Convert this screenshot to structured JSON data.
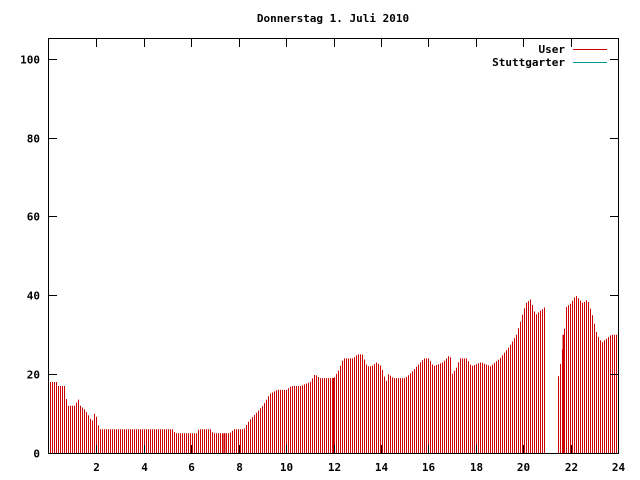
{
  "chart_data": {
    "type": "bar",
    "title": "Donnerstag 1. Juli 2010",
    "xlabel": "",
    "ylabel": "",
    "xlim": [
      0,
      24
    ],
    "ylim": [
      0,
      105
    ],
    "xticks": [
      2,
      4,
      6,
      8,
      10,
      12,
      14,
      16,
      18,
      20,
      22,
      24
    ],
    "yticks": [
      0,
      20,
      40,
      60,
      80,
      100
    ],
    "grid": false,
    "legend_position": "top-right",
    "series": [
      {
        "name": "User",
        "color": "#cc0000",
        "keypoints": [
          [
            0.0,
            18
          ],
          [
            0.3,
            18
          ],
          [
            0.35,
            17
          ],
          [
            0.65,
            17
          ],
          [
            0.7,
            14
          ],
          [
            0.8,
            12
          ],
          [
            1.1,
            12
          ],
          [
            1.2,
            14
          ],
          [
            1.3,
            12
          ],
          [
            1.5,
            11
          ],
          [
            1.7,
            9
          ],
          [
            1.8,
            8
          ],
          [
            1.9,
            10
          ],
          [
            2.0,
            9
          ],
          [
            2.1,
            6
          ],
          [
            5.2,
            6
          ],
          [
            5.3,
            5
          ],
          [
            6.2,
            5
          ],
          [
            6.3,
            6
          ],
          [
            6.8,
            6
          ],
          [
            6.9,
            5
          ],
          [
            7.6,
            5
          ],
          [
            7.8,
            6
          ],
          [
            8.2,
            6
          ],
          [
            8.4,
            8
          ],
          [
            8.7,
            10
          ],
          [
            9.0,
            12
          ],
          [
            9.3,
            15
          ],
          [
            9.6,
            16
          ],
          [
            10.0,
            16
          ],
          [
            10.2,
            17
          ],
          [
            10.6,
            17
          ],
          [
            11.0,
            18
          ],
          [
            11.2,
            20
          ],
          [
            11.4,
            19
          ],
          [
            12.0,
            19
          ],
          [
            12.2,
            21
          ],
          [
            12.4,
            24
          ],
          [
            12.8,
            24
          ],
          [
            13.0,
            25
          ],
          [
            13.2,
            25
          ],
          [
            13.4,
            22
          ],
          [
            13.6,
            22
          ],
          [
            13.8,
            23
          ],
          [
            14.0,
            22
          ],
          [
            14.2,
            18
          ],
          [
            14.3,
            20
          ],
          [
            14.5,
            19
          ],
          [
            15.0,
            19
          ],
          [
            15.2,
            20
          ],
          [
            15.5,
            22
          ],
          [
            15.8,
            24
          ],
          [
            16.0,
            24
          ],
          [
            16.2,
            22
          ],
          [
            16.6,
            23
          ],
          [
            16.9,
            25
          ],
          [
            17.0,
            20
          ],
          [
            17.2,
            22
          ],
          [
            17.3,
            24
          ],
          [
            17.6,
            24
          ],
          [
            17.8,
            22
          ],
          [
            18.2,
            23
          ],
          [
            18.6,
            22
          ],
          [
            19.0,
            24
          ],
          [
            19.4,
            27
          ],
          [
            19.7,
            30
          ],
          [
            19.95,
            35
          ],
          [
            20.1,
            38
          ],
          [
            20.3,
            39
          ],
          [
            20.5,
            35
          ],
          [
            20.7,
            36
          ],
          [
            20.9,
            37
          ],
          [
            21.0,
            null
          ],
          [
            21.35,
            null
          ],
          [
            21.4,
            16
          ],
          [
            21.5,
            21
          ],
          [
            21.6,
            24
          ],
          [
            21.7,
            30
          ],
          [
            21.8,
            37
          ],
          [
            22.0,
            38
          ],
          [
            22.2,
            40
          ],
          [
            22.5,
            38
          ],
          [
            22.7,
            39
          ],
          [
            22.9,
            35
          ],
          [
            23.1,
            30
          ],
          [
            23.3,
            28
          ],
          [
            23.5,
            29
          ],
          [
            23.7,
            30
          ],
          [
            24.0,
            30
          ]
        ]
      },
      {
        "name": "Stuttgarter",
        "color": "#009999",
        "keypoints": []
      }
    ]
  }
}
